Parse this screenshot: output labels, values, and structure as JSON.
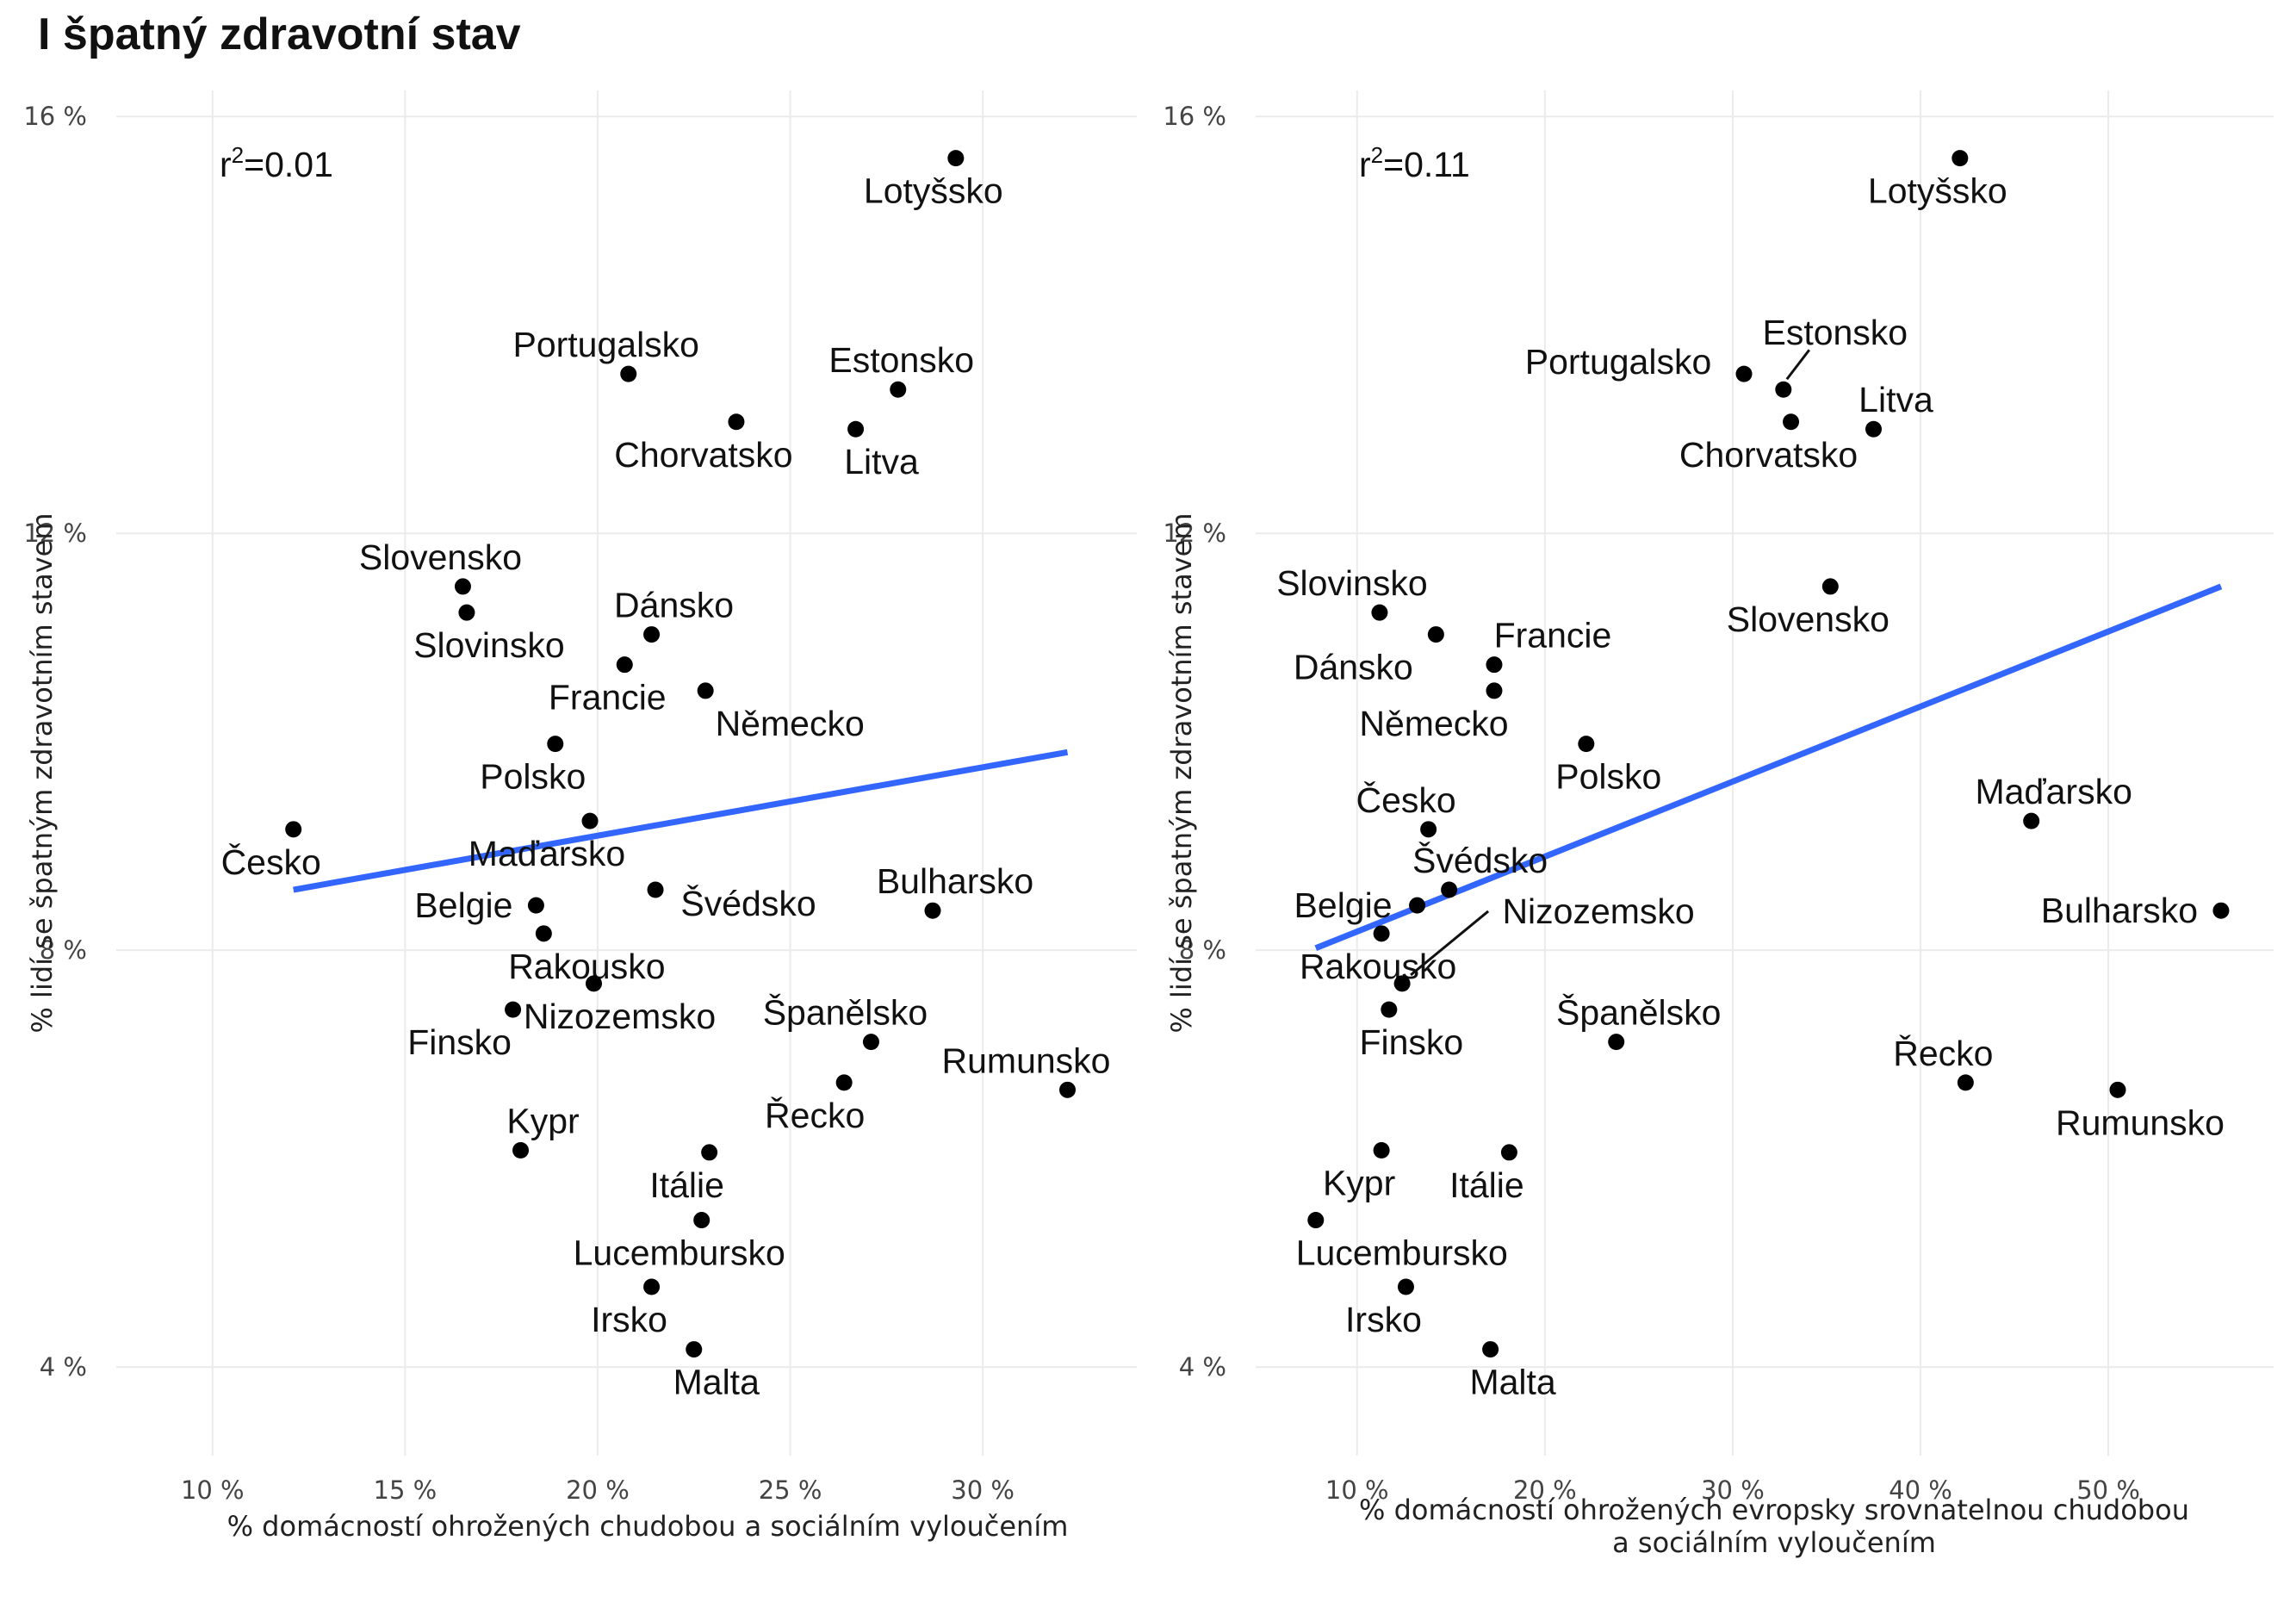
{
  "title": "I špatný zdravotní stav",
  "chart_data": [
    {
      "type": "scatter",
      "title": "",
      "xlabel": "% domácností ohrožených chudobou a sociálním vyloučením",
      "ylabel": "% lidí se špatným zdravotním stavem",
      "xlim": [
        0.075,
        0.34
      ],
      "ylim": [
        0.0315,
        0.1625
      ],
      "x_ticks": [
        0.1,
        0.15,
        0.2,
        0.25,
        0.3
      ],
      "x_tick_labels": [
        "10 %",
        "15 %",
        "20 %",
        "25 %",
        "30 %"
      ],
      "y_ticks": [
        0.04,
        0.08,
        0.12,
        0.16
      ],
      "y_tick_labels": [
        "4 %",
        "8 %",
        "12 %",
        "16 %"
      ],
      "r2_text": {
        "r": "r",
        "sup": "2",
        "value": "=0.01"
      },
      "trend": {
        "x": [
          0.121,
          0.322
        ],
        "y": [
          0.0858,
          0.099
        ],
        "color": "#3366ff"
      },
      "grid": true,
      "points": [
        {
          "name": "Lotyšsko",
          "x": 0.293,
          "y": 0.156
        },
        {
          "name": "Portugalsko",
          "x": 0.208,
          "y": 0.1353
        },
        {
          "name": "Estonsko",
          "x": 0.278,
          "y": 0.1338
        },
        {
          "name": "Chorvatsko",
          "x": 0.236,
          "y": 0.1307
        },
        {
          "name": "Litva",
          "x": 0.267,
          "y": 0.13
        },
        {
          "name": "Slovensko",
          "x": 0.165,
          "y": 0.1149
        },
        {
          "name": "Slovinsko",
          "x": 0.166,
          "y": 0.1124
        },
        {
          "name": "Dánsko",
          "x": 0.214,
          "y": 0.1103
        },
        {
          "name": "Francie",
          "x": 0.207,
          "y": 0.1074
        },
        {
          "name": "Německo",
          "x": 0.228,
          "y": 0.1049
        },
        {
          "name": "Polsko",
          "x": 0.189,
          "y": 0.0998
        },
        {
          "name": "Česko",
          "x": 0.121,
          "y": 0.0916
        },
        {
          "name": "Maďarsko",
          "x": 0.198,
          "y": 0.0924
        },
        {
          "name": "Švédsko",
          "x": 0.215,
          "y": 0.0858
        },
        {
          "name": "Belgie",
          "x": 0.184,
          "y": 0.0843
        },
        {
          "name": "Bulharsko",
          "x": 0.287,
          "y": 0.0838
        },
        {
          "name": "Rakousko",
          "x": 0.186,
          "y": 0.0816
        },
        {
          "name": "Nizozemsko",
          "x": 0.199,
          "y": 0.0768
        },
        {
          "name": "Finsko",
          "x": 0.178,
          "y": 0.0743
        },
        {
          "name": "Španělsko",
          "x": 0.271,
          "y": 0.0712
        },
        {
          "name": "Řecko",
          "x": 0.264,
          "y": 0.0673
        },
        {
          "name": "Rumunsko",
          "x": 0.322,
          "y": 0.0666
        },
        {
          "name": "Kypr",
          "x": 0.18,
          "y": 0.0608
        },
        {
          "name": "Itálie",
          "x": 0.229,
          "y": 0.0606
        },
        {
          "name": "Lucembursko",
          "x": 0.227,
          "y": 0.0541
        },
        {
          "name": "Irsko",
          "x": 0.214,
          "y": 0.0477
        },
        {
          "name": "Malta",
          "x": 0.225,
          "y": 0.0417
        }
      ]
    },
    {
      "type": "scatter",
      "title": "",
      "xlabel": "% domácností ohrožených evropsky srovnatelnou chudobou a sociálním vyloučením",
      "xlabel_lines": [
        "% domácností ohrožených evropsky srovnatelnou chudobou",
        "a sociálním vyloučením"
      ],
      "ylabel": "% lidí se špatným zdravotním stavem",
      "xlim": [
        0.046,
        0.588
      ],
      "ylim": [
        0.0315,
        0.1625
      ],
      "x_ticks": [
        0.1,
        0.2,
        0.3,
        0.4,
        0.5
      ],
      "x_tick_labels": [
        "10 %",
        "20 %",
        "30 %",
        "40 %",
        "50 %"
      ],
      "y_ticks": [
        0.04,
        0.08,
        0.12,
        0.16
      ],
      "y_tick_labels": [
        "4 %",
        "8 %",
        "12 %",
        "16 %"
      ],
      "r2_text": {
        "r": "r",
        "sup": "2",
        "value": "=0.11"
      },
      "trend": {
        "x": [
          0.078,
          0.56
        ],
        "y": [
          0.0802,
          0.1149
        ],
        "color": "#3366ff"
      },
      "grid": true,
      "points": [
        {
          "name": "Lotyšsko",
          "x": 0.421,
          "y": 0.156
        },
        {
          "name": "Portugalsko",
          "x": 0.306,
          "y": 0.1353
        },
        {
          "name": "Estonsko",
          "x": 0.327,
          "y": 0.1338
        },
        {
          "name": "Chorvatsko",
          "x": 0.331,
          "y": 0.1307
        },
        {
          "name": "Litva",
          "x": 0.375,
          "y": 0.13
        },
        {
          "name": "Slovensko",
          "x": 0.352,
          "y": 0.1149
        },
        {
          "name": "Slovinsko",
          "x": 0.112,
          "y": 0.1124
        },
        {
          "name": "Dánsko",
          "x": 0.142,
          "y": 0.1103
        },
        {
          "name": "Francie",
          "x": 0.173,
          "y": 0.1074
        },
        {
          "name": "Německo",
          "x": 0.173,
          "y": 0.1049
        },
        {
          "name": "Polsko",
          "x": 0.222,
          "y": 0.0998
        },
        {
          "name": "Česko",
          "x": 0.138,
          "y": 0.0916
        },
        {
          "name": "Maďarsko",
          "x": 0.459,
          "y": 0.0924
        },
        {
          "name": "Švédsko",
          "x": 0.149,
          "y": 0.0858
        },
        {
          "name": "Belgie",
          "x": 0.132,
          "y": 0.0843
        },
        {
          "name": "Bulharsko",
          "x": 0.56,
          "y": 0.0838
        },
        {
          "name": "Rakousko",
          "x": 0.113,
          "y": 0.0816
        },
        {
          "name": "Nizozemsko",
          "x": 0.124,
          "y": 0.0768
        },
        {
          "name": "Finsko",
          "x": 0.117,
          "y": 0.0743
        },
        {
          "name": "Španělsko",
          "x": 0.238,
          "y": 0.0712
        },
        {
          "name": "Řecko",
          "x": 0.424,
          "y": 0.0673
        },
        {
          "name": "Rumunsko",
          "x": 0.505,
          "y": 0.0666
        },
        {
          "name": "Kypr",
          "x": 0.113,
          "y": 0.0608
        },
        {
          "name": "Itálie",
          "x": 0.181,
          "y": 0.0606
        },
        {
          "name": "Lucembursko",
          "x": 0.078,
          "y": 0.0541
        },
        {
          "name": "Irsko",
          "x": 0.126,
          "y": 0.0477
        },
        {
          "name": "Malta",
          "x": 0.171,
          "y": 0.0417
        }
      ]
    }
  ]
}
